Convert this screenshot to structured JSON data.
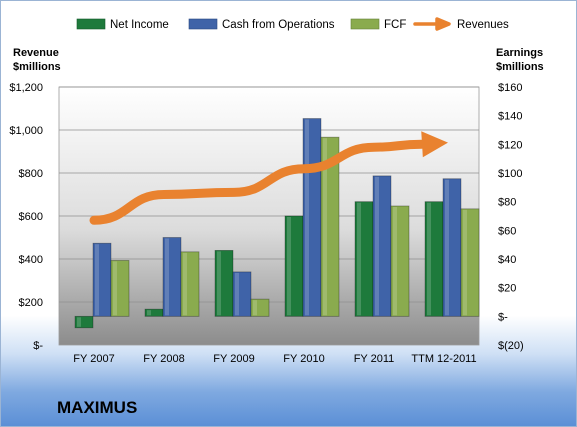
{
  "company_name": "MAXIMUS",
  "chart_data": {
    "type": "bar",
    "categories": [
      "FY 2007",
      "FY 2008",
      "FY 2009",
      "FY 2010",
      "FY 2011",
      "TTM 12-2011"
    ],
    "series": [
      {
        "name": "Net Income",
        "axis": "right",
        "kind": "bar",
        "color": "#1e7a3c",
        "values": [
          -8,
          5,
          46,
          70,
          80,
          80
        ]
      },
      {
        "name": "Cash from Operations",
        "axis": "right",
        "kind": "bar",
        "color": "#3f63a8",
        "values": [
          51,
          55,
          31,
          138,
          98,
          96
        ]
      },
      {
        "name": "FCF",
        "axis": "right",
        "kind": "bar",
        "color": "#8aab4e",
        "values": [
          39,
          45,
          12,
          125,
          77,
          75
        ]
      },
      {
        "name": "Revenues",
        "axis": "left",
        "kind": "arrow-line",
        "color": "#e9822f",
        "values": [
          580,
          700,
          710,
          820,
          920,
          940
        ]
      }
    ],
    "left_axis": {
      "label_line1": "Revenue",
      "label_line2": "$millions",
      "min": 0,
      "max": 1200,
      "ticks": [
        0,
        200,
        400,
        600,
        800,
        1000,
        1200
      ],
      "tick_labels": [
        "$-",
        "$200",
        "$400",
        "$600",
        "$800",
        "$1,000",
        "$1,200"
      ]
    },
    "right_axis": {
      "label_line1": "Earnings",
      "label_line2": "$millions",
      "min": -20,
      "max": 160,
      "ticks": [
        -20,
        0,
        20,
        40,
        60,
        80,
        100,
        120,
        140,
        160
      ],
      "tick_labels": [
        "$(20)",
        "$-",
        "$20",
        "$40",
        "$60",
        "$80",
        "$100",
        "$120",
        "$140",
        "$160"
      ]
    },
    "grid": true,
    "legend_position": "top"
  }
}
